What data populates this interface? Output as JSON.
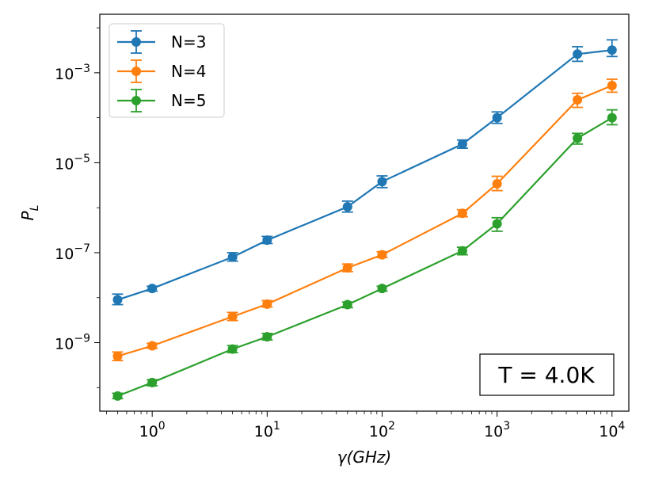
{
  "chart_data": {
    "type": "line",
    "title": "",
    "xlabel": "γ(GHz)",
    "ylabel": "P_L",
    "xscale": "log",
    "yscale": "log",
    "xlim": [
      0.35,
      14000
    ],
    "ylim": [
      3e-11,
      0.02
    ],
    "grid": false,
    "legend_position": "top-left",
    "x": [
      0.5,
      1,
      5,
      10,
      50,
      100,
      500,
      1000,
      5000,
      10000
    ],
    "series": [
      {
        "name": "N=3",
        "color": "#1f77b4",
        "values": [
          9e-09,
          1.6e-08,
          8e-08,
          1.9e-07,
          1.05e-06,
          3.8e-06,
          2.6e-05,
          0.0001,
          0.0026,
          0.0032
        ],
        "err_low": [
          2e-09,
          2e-09,
          1.5e-08,
          3e-08,
          2.5e-07,
          1e-06,
          5e-06,
          2.5e-05,
          0.0008,
          0.0009
        ],
        "err_high": [
          3e-09,
          2e-09,
          2e-08,
          4e-08,
          3.5e-07,
          1.3e-06,
          6e-06,
          3.5e-05,
          0.0012,
          0.0022
        ]
      },
      {
        "name": "N=4",
        "color": "#ff7f0e",
        "values": [
          5e-10,
          8.5e-10,
          3.8e-09,
          7.2e-09,
          4.6e-08,
          9e-08,
          7.5e-07,
          3.4e-06,
          0.00025,
          0.00052
        ],
        "err_low": [
          1e-10,
          1e-10,
          7e-10,
          1e-09,
          8e-09,
          1.2e-08,
          1.2e-07,
          1e-06,
          8e-05,
          0.00015
        ],
        "err_high": [
          1.2e-10,
          1.2e-10,
          9e-10,
          1.4e-09,
          1e-08,
          1.5e-08,
          1.5e-07,
          1.6e-06,
          0.0001,
          0.0002
        ]
      },
      {
        "name": "N=5",
        "color": "#2ca02c",
        "values": [
          6.5e-11,
          1.3e-10,
          7.2e-10,
          1.35e-09,
          7e-09,
          1.6e-08,
          1.1e-07,
          4.4e-07,
          3.5e-05,
          0.0001
        ],
        "err_low": [
          8e-12,
          2e-11,
          1.2e-10,
          2e-10,
          1e-09,
          2e-09,
          2e-08,
          1.4e-07,
          9e-06,
          3e-05
        ],
        "err_high": [
          1e-11,
          2e-11,
          1.4e-10,
          2.5e-10,
          1e-09,
          2e-09,
          2.2e-08,
          1.6e-07,
          1e-05,
          5e-05
        ]
      }
    ],
    "x_ticks": [
      {
        "value": 1,
        "base": "10",
        "exp": "0"
      },
      {
        "value": 10,
        "base": "10",
        "exp": "1"
      },
      {
        "value": 100,
        "base": "10",
        "exp": "2"
      },
      {
        "value": 1000,
        "base": "10",
        "exp": "3"
      },
      {
        "value": 10000,
        "base": "10",
        "exp": "4"
      }
    ],
    "y_ticks": [
      {
        "value": 1e-09,
        "base": "10",
        "exp": "−9"
      },
      {
        "value": 1e-07,
        "base": "10",
        "exp": "−7"
      },
      {
        "value": 1e-05,
        "base": "10",
        "exp": "−5"
      },
      {
        "value": 0.001,
        "base": "10",
        "exp": "−3"
      }
    ],
    "annotation": "T = 4.0K"
  }
}
